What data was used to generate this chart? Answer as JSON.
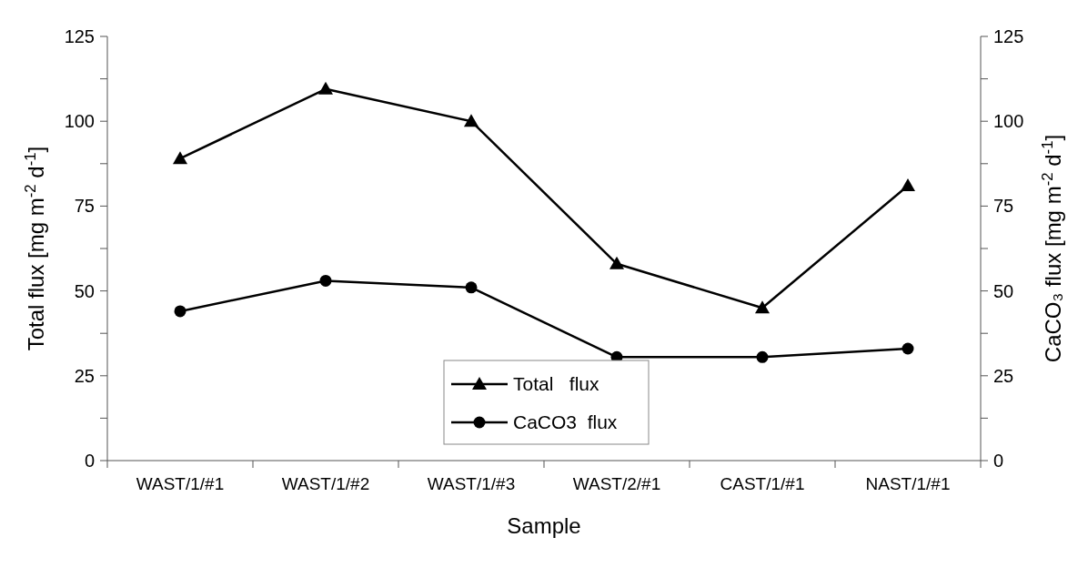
{
  "chart_data": {
    "type": "line",
    "xlabel": "Sample",
    "ylabel": "Total flux [mg m$^{-2}$ d$^{-1}$]",
    "y2label": "CaCO₃ flux [mg m$^{-2}$ d$^{-1}$]",
    "categories": [
      "WAST/1/#1",
      "WAST/1/#2",
      "WAST/1/#3",
      "WAST/2/#1",
      "CAST/1/#1",
      "NAST/1/#1"
    ],
    "series": [
      {
        "name": "Total   flux",
        "color": "#000000",
        "marker": "triangle",
        "values": [
          89,
          109.5,
          100,
          58,
          45,
          81
        ]
      },
      {
        "name": "CaCO3  flux",
        "color": "#000000",
        "marker": "circle",
        "values": [
          44,
          53,
          51,
          30.5,
          30.5,
          33
        ]
      }
    ],
    "ylim": [
      0,
      125
    ],
    "yticks": [
      0,
      {
        "value": 12.5,
        "label": null
      },
      25,
      {
        "value": 37.5,
        "label": null
      },
      50,
      {
        "value": 62.5,
        "label": null
      },
      75,
      {
        "value": 87.5,
        "label": null
      },
      100,
      {
        "value": 112.5,
        "label": null
      },
      125
    ],
    "y2lim": [
      0,
      125
    ],
    "y2ticks": [
      0,
      {
        "value": 12.5,
        "label": null
      },
      25,
      {
        "value": 37.5,
        "label": null
      },
      50,
      {
        "value": 62.5,
        "label": null
      },
      75,
      {
        "value": 87.5,
        "label": null
      },
      100,
      {
        "value": 112.5,
        "label": null
      },
      125
    ],
    "legend": "bottom",
    "grid": false,
    "line_style": "solid"
  }
}
